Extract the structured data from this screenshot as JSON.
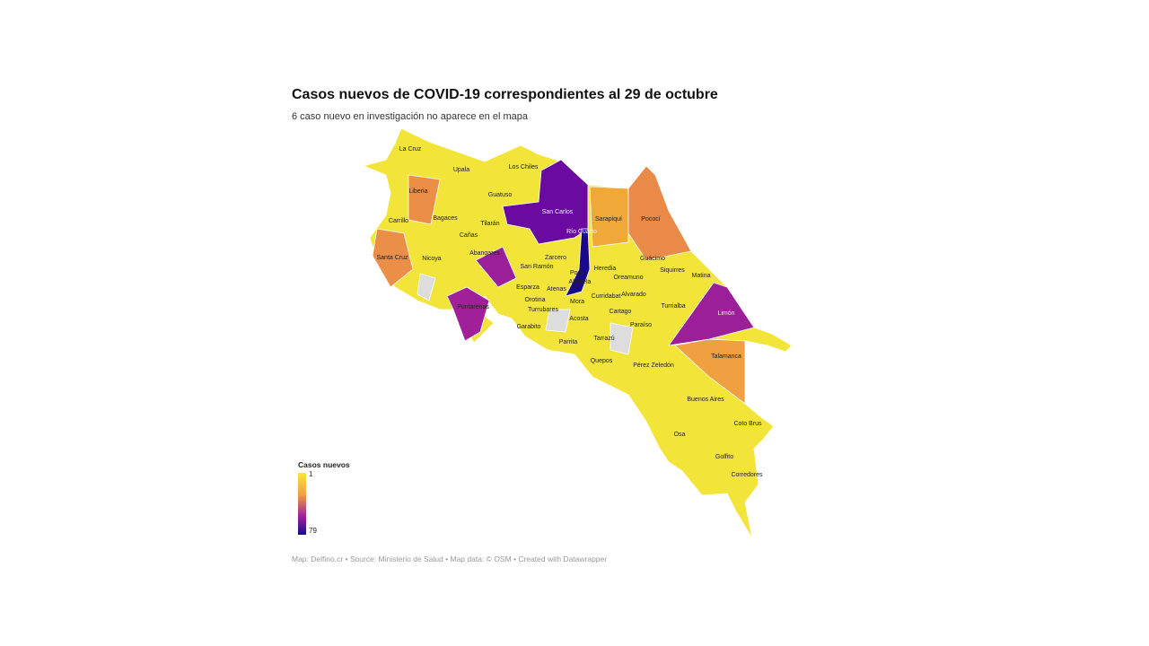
{
  "title": "Casos nuevos de COVID-19 correspondientes al 29 de octubre",
  "subtitle": "6 caso nuevo en investigación no aparece en el mapa",
  "legend": {
    "title": "Casos nuevos",
    "min": 1,
    "max": 79
  },
  "footer": "Map: Delfino.cr • Source: Ministerio de Salud • Map data: © OSM • Created with Datawrapper",
  "cantons": [
    "La Cruz",
    "Upala",
    "Los Chiles",
    "Liberia",
    "Guatuso",
    "San Carlos",
    "Sarapiquí",
    "Pococí",
    "Bagaces",
    "Carrillo",
    "Tilarán",
    "Cañas",
    "Río Cuarto",
    "Abangares",
    "Santa Cruz",
    "Nicoya",
    "Zarcero",
    "Guácimo",
    "San Ramón",
    "Heredia",
    "Siquirres",
    "Poás",
    "Matina",
    "Oreamuno",
    "Alajuela",
    "Esparza",
    "Atenas",
    "Alvarado",
    "Curridabat",
    "Orotina",
    "Mora",
    "Turrialba",
    "Puntarenas",
    "Cartago",
    "Limón",
    "Turrubares",
    "Acosta",
    "Paraíso",
    "Garabito",
    "Parrita",
    "Tarrazú",
    "Talamanca",
    "Quepos",
    "Pérez Zeledón",
    "Buenos Aires",
    "Coto Brus",
    "Osa",
    "Golfito",
    "Corredores"
  ]
}
